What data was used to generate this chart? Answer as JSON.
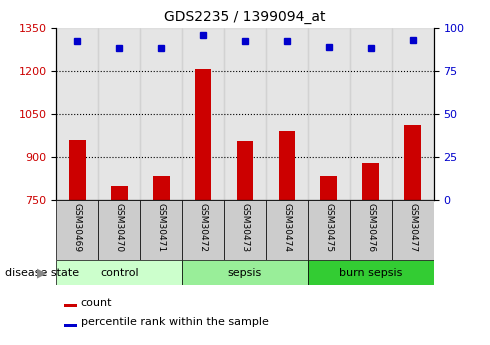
{
  "title": "GDS2235 / 1399094_at",
  "samples": [
    "GSM30469",
    "GSM30470",
    "GSM30471",
    "GSM30472",
    "GSM30473",
    "GSM30474",
    "GSM30475",
    "GSM30476",
    "GSM30477"
  ],
  "counts": [
    960,
    798,
    835,
    1207,
    955,
    990,
    835,
    880,
    1010
  ],
  "percentiles": [
    92,
    88,
    88,
    96,
    92,
    92,
    89,
    88,
    93
  ],
  "groups": [
    {
      "label": "control",
      "indices": [
        0,
        1,
        2
      ],
      "color": "#ccffcc"
    },
    {
      "label": "sepsis",
      "indices": [
        3,
        4,
        5
      ],
      "color": "#99ee99"
    },
    {
      "label": "burn sepsis",
      "indices": [
        6,
        7,
        8
      ],
      "color": "#33cc33"
    }
  ],
  "bar_color": "#cc0000",
  "dot_color": "#0000cc",
  "ylim_left": [
    750,
    1350
  ],
  "ylim_right": [
    0,
    100
  ],
  "yticks_left": [
    750,
    900,
    1050,
    1200,
    1350
  ],
  "yticks_right": [
    0,
    25,
    50,
    75,
    100
  ],
  "grid_values": [
    900,
    1050,
    1200
  ],
  "bg_color_samples": "#cccccc",
  "arrow_label": "disease state",
  "legend_count": "count",
  "legend_percentile": "percentile rank within the sample"
}
